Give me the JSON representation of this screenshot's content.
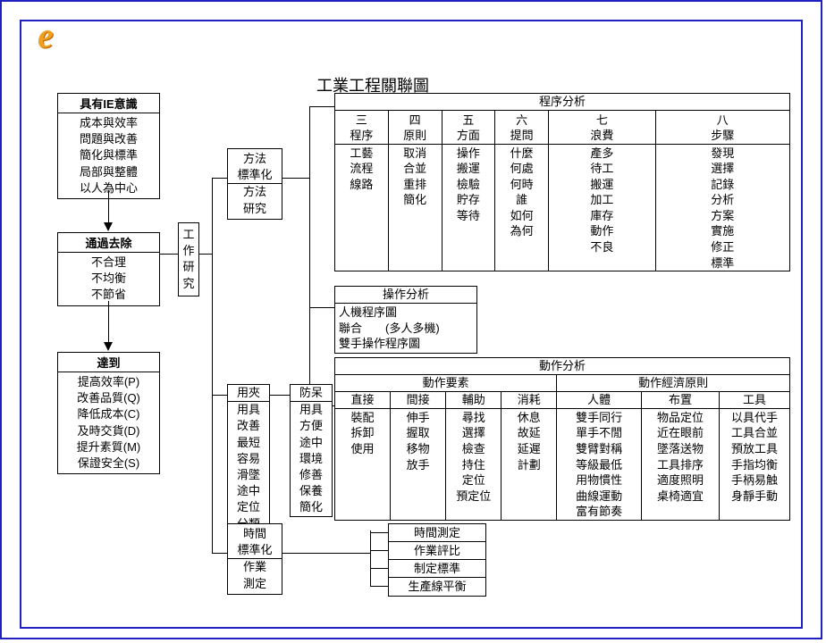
{
  "title": "工業工程關聯圖",
  "logo_text": "e",
  "ie_sense": {
    "header": "具有IE意識",
    "items": [
      "成本與效率",
      "問題與改善",
      "簡化與標準",
      "局部與整體",
      "以人為中心"
    ]
  },
  "remove": {
    "header": "通過去除",
    "items": [
      "不合理",
      "不均衡",
      "不節省"
    ]
  },
  "achieve": {
    "header": "達到",
    "items": [
      "提高效率(P)",
      "改善品質(Q)",
      "降低成本(C)",
      "及時交貨(D)",
      "提升素質(M)",
      "保證安全(S)"
    ]
  },
  "work_study": "工作研究",
  "method_box": [
    "方法",
    "標準化",
    "方法",
    "研究"
  ],
  "program_analysis": {
    "title": "程序分析",
    "cols": [
      {
        "top": "三",
        "sub": "程序",
        "vals": [
          "工藝",
          "流程",
          "線路"
        ]
      },
      {
        "top": "四",
        "sub": "原則",
        "vals": [
          "取消",
          "合並",
          "重排",
          "簡化"
        ]
      },
      {
        "top": "五",
        "sub": "方面",
        "vals": [
          "操作",
          "搬運",
          "檢驗",
          "貯存",
          "等待"
        ]
      },
      {
        "top": "六",
        "sub": "提問",
        "vals": [
          "什麼",
          "何處",
          "何時",
          "誰",
          "如何",
          "為何"
        ]
      },
      {
        "top": "七",
        "sub": "浪費",
        "vals": [
          "產多",
          "待工",
          "搬運",
          "加工",
          "庫存",
          "動作",
          "不良"
        ]
      },
      {
        "top": "八",
        "sub": "步驟",
        "vals": [
          "發現",
          "選擇",
          "記錄",
          "分析",
          "方案",
          "實施",
          "修正",
          "標準"
        ]
      }
    ]
  },
  "operation_analysis": {
    "title": "操作分析",
    "items": [
      "人機程序圖",
      "聯合　　(多人多機)",
      "雙手操作程序圖"
    ]
  },
  "clamp": {
    "header": "用夾",
    "items": [
      "用具",
      "改善",
      "最短",
      "容易",
      "滑墜",
      "途中",
      "定位",
      "分類"
    ]
  },
  "fool": {
    "header": "防呆",
    "items": [
      "用具",
      "方便",
      "途中",
      "環境",
      "修善",
      "保養",
      "簡化"
    ]
  },
  "motion_analysis": {
    "title": "動作分析",
    "left_header": "動作要素",
    "right_header": "動作經濟原則",
    "elem_cols": [
      {
        "sub": "直接",
        "vals": [
          "裝配",
          "拆卸",
          "使用"
        ]
      },
      {
        "sub": "間接",
        "vals": [
          "伸手",
          "握取",
          "移物",
          "放手"
        ]
      },
      {
        "sub": "輔助",
        "vals": [
          "尋找",
          "選擇",
          "檢查",
          "持住",
          "定位",
          "預定位"
        ]
      },
      {
        "sub": "消耗",
        "vals": [
          "休息",
          "故延",
          "延遲",
          "計劃"
        ]
      }
    ],
    "econ_cols": [
      {
        "sub": "人體",
        "vals": [
          "雙手同行",
          "單手不閒",
          "雙臂對稱",
          "等級最低",
          "用物慣性",
          "曲線運動",
          "富有節奏"
        ]
      },
      {
        "sub": "布置",
        "vals": [
          "物品定位",
          "近在眼前",
          "墜落送物",
          "工具排序",
          "適度照明",
          "桌椅適宜"
        ]
      },
      {
        "sub": "工具",
        "vals": [
          "以具代手",
          "工具合並",
          "預放工具",
          "手指均衡",
          "手柄易触",
          "身靜手動"
        ]
      }
    ]
  },
  "time_box": [
    "時間",
    "標準化",
    "作業",
    "測定"
  ],
  "time_items": [
    "時間測定",
    "作業評比",
    "制定標準",
    "生產線平衡"
  ],
  "colors": {
    "frame": "#2020c0",
    "logo": "#f0a020",
    "line": "#000000",
    "bg": "#ffffff"
  }
}
